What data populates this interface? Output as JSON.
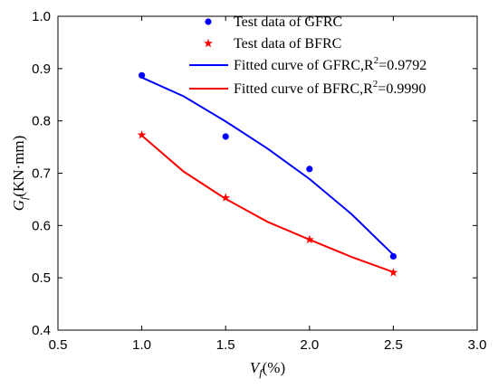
{
  "chart_data": {
    "type": "scatter",
    "xlabel": {
      "main": "V",
      "sub": "f",
      "rest": "(%)"
    },
    "ylabel": {
      "main": "G",
      "sub": "f",
      "rest": "(KN·mm)"
    },
    "xlim": [
      0.5,
      3.0
    ],
    "ylim": [
      0.4,
      1.0
    ],
    "xticks": [
      "0.5",
      "1.0",
      "1.5",
      "2.0",
      "2.5",
      "3.0"
    ],
    "yticks": [
      "0.4",
      "0.5",
      "0.6",
      "0.7",
      "0.8",
      "0.9",
      "1.0"
    ],
    "grid": false,
    "legend_position": "top-right",
    "series": [
      {
        "name": "Test data of GFRC",
        "kind": "points",
        "marker": "circle",
        "color": "#0000ff",
        "x": [
          1.0,
          1.5,
          2.0,
          2.5
        ],
        "y": [
          0.887,
          0.77,
          0.708,
          0.541
        ]
      },
      {
        "name": "Test data of BFRC",
        "kind": "points",
        "marker": "star",
        "color": "#ff0000",
        "x": [
          1.0,
          1.5,
          2.0,
          2.5
        ],
        "y": [
          0.773,
          0.653,
          0.573,
          0.51
        ]
      },
      {
        "name": "Fitted curve of GFRC,R",
        "r2": "0.9792",
        "kind": "line",
        "color": "#0000ff",
        "x": [
          1.0,
          1.25,
          1.5,
          1.75,
          2.0,
          2.25,
          2.5
        ],
        "y": [
          0.883,
          0.847,
          0.799,
          0.747,
          0.689,
          0.622,
          0.544
        ]
      },
      {
        "name": "Fitted curve of BFRC,R",
        "r2": "0.9990",
        "kind": "line",
        "color": "#ff0000",
        "x": [
          1.0,
          1.25,
          1.5,
          1.75,
          2.0,
          2.25,
          2.5
        ],
        "y": [
          0.772,
          0.703,
          0.651,
          0.607,
          0.573,
          0.54,
          0.511
        ]
      }
    ]
  }
}
